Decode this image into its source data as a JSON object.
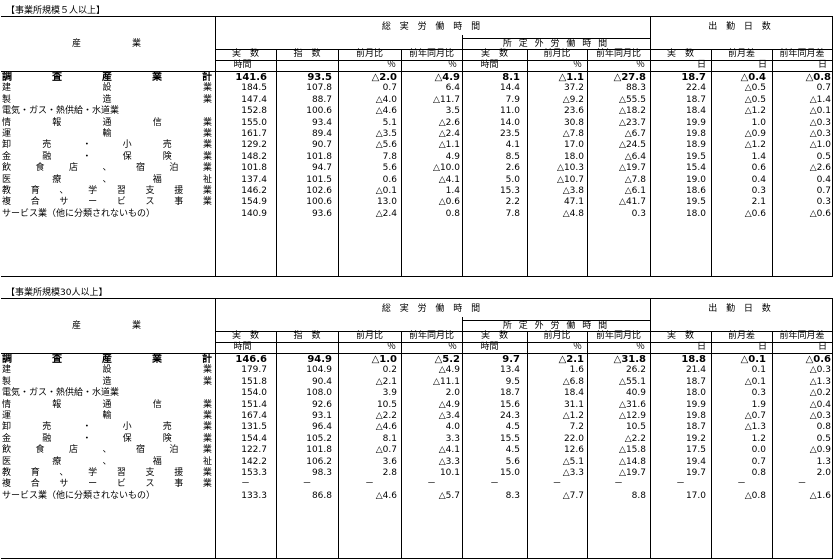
{
  "sections": [
    {
      "title": "【事業所規模５人以上】",
      "rows": [
        {
          "name": [
            "調",
            "査",
            "産",
            "業",
            "計"
          ],
          "v": [
            "141.6",
            "93.5",
            "△2.0",
            "△4.9",
            "8.1",
            "△1.1",
            "△27.8",
            "18.7",
            "△0.4",
            "△0.8"
          ],
          "bold": true
        },
        {
          "name": [
            "建",
            "設",
            "業"
          ],
          "v": [
            "184.5",
            "107.8",
            "0.7",
            "6.4",
            "14.4",
            "37.2",
            "88.3",
            "22.4",
            "△0.5",
            "0.7"
          ]
        },
        {
          "name": [
            "製",
            "造",
            "業"
          ],
          "v": [
            "147.4",
            "88.7",
            "△4.0",
            "△11.7",
            "7.9",
            "△9.2",
            "△55.5",
            "18.7",
            "△0.5",
            "△1.4"
          ]
        },
        {
          "name": [
            "電気・ガス・熱供給・水道業"
          ],
          "v": [
            "152.8",
            "100.6",
            "△4.6",
            "3.5",
            "11.0",
            "23.6",
            "△18.2",
            "18.4",
            "△1.2",
            "△0.1"
          ]
        },
        {
          "name": [
            "情",
            "報",
            "通",
            "信",
            "業"
          ],
          "v": [
            "155.0",
            "93.4",
            "5.1",
            "△2.6",
            "14.0",
            "30.8",
            "△23.7",
            "19.9",
            "1.0",
            "△0.3"
          ]
        },
        {
          "name": [
            "運",
            "輸",
            "業"
          ],
          "v": [
            "161.7",
            "89.4",
            "△3.5",
            "△2.4",
            "23.5",
            "△7.8",
            "△6.7",
            "19.8",
            "△0.9",
            "△0.3"
          ]
        },
        {
          "name": [
            "卸",
            "売",
            "・",
            "小",
            "売",
            "業"
          ],
          "v": [
            "129.2",
            "90.7",
            "△5.6",
            "△1.1",
            "4.1",
            "17.0",
            "△24.5",
            "18.9",
            "△1.2",
            "△1.0"
          ]
        },
        {
          "name": [
            "金",
            "融",
            "・",
            "保",
            "険",
            "業"
          ],
          "v": [
            "148.2",
            "101.8",
            "7.8",
            "4.9",
            "8.5",
            "18.0",
            "△6.4",
            "19.5",
            "1.4",
            "0.5"
          ]
        },
        {
          "name": [
            "飲",
            "食",
            "店",
            "、",
            "宿",
            "泊",
            "業"
          ],
          "v": [
            "101.8",
            "94.7",
            "5.6",
            "△10.0",
            "2.6",
            "△10.3",
            "△19.7",
            "15.4",
            "0.6",
            "△2.6"
          ]
        },
        {
          "name": [
            "医",
            "療",
            "、",
            "福",
            "祉"
          ],
          "v": [
            "137.4",
            "101.5",
            "0.6",
            "△4.1",
            "5.0",
            "△10.7",
            "△7.8",
            "19.0",
            "0.4",
            "0.4"
          ]
        },
        {
          "name": [
            "教",
            "育",
            "、",
            "学",
            "習",
            "支",
            "援",
            "業"
          ],
          "v": [
            "146.2",
            "102.6",
            "△0.1",
            "1.4",
            "15.3",
            "△3.8",
            "△6.1",
            "18.6",
            "0.3",
            "0.7"
          ]
        },
        {
          "name": [
            "複",
            "合",
            "サ",
            "ー",
            "ビ",
            "ス",
            "事",
            "業"
          ],
          "v": [
            "154.9",
            "100.6",
            "13.0",
            "△0.6",
            "2.2",
            "47.1",
            "△41.7",
            "19.5",
            "2.1",
            "0.3"
          ]
        },
        {
          "name": [
            "サービス業（他に分類されないもの）"
          ],
          "v": [
            "140.9",
            "93.6",
            "△2.4",
            "0.8",
            "7.8",
            "△4.8",
            "0.3",
            "18.0",
            "△0.6",
            "△0.6"
          ]
        }
      ]
    },
    {
      "title": "【事業所規模30人以上】",
      "rows": [
        {
          "name": [
            "調",
            "査",
            "産",
            "業",
            "計"
          ],
          "v": [
            "146.6",
            "94.9",
            "△1.0",
            "△5.2",
            "9.7",
            "△2.1",
            "△31.8",
            "18.8",
            "△0.1",
            "△0.6"
          ],
          "bold": true
        },
        {
          "name": [
            "建",
            "設",
            "業"
          ],
          "v": [
            "179.7",
            "104.9",
            "0.2",
            "△4.9",
            "13.4",
            "1.6",
            "26.2",
            "21.4",
            "0.1",
            "△0.3"
          ]
        },
        {
          "name": [
            "製",
            "造",
            "業"
          ],
          "v": [
            "151.8",
            "90.4",
            "△2.1",
            "△11.1",
            "9.5",
            "△6.8",
            "△55.1",
            "18.7",
            "△0.1",
            "△1.3"
          ]
        },
        {
          "name": [
            "電気・ガス・熱供給・水道業"
          ],
          "v": [
            "154.0",
            "108.0",
            "3.9",
            "2.0",
            "18.7",
            "18.4",
            "40.9",
            "18.0",
            "0.3",
            "△0.2"
          ]
        },
        {
          "name": [
            "情",
            "報",
            "通",
            "信",
            "業"
          ],
          "v": [
            "151.4",
            "92.6",
            "10.5",
            "△4.9",
            "15.6",
            "31.1",
            "△31.6",
            "19.9",
            "1.9",
            "△0.4"
          ]
        },
        {
          "name": [
            "運",
            "輸",
            "業"
          ],
          "v": [
            "167.4",
            "93.1",
            "△2.2",
            "△3.4",
            "24.3",
            "△1.2",
            "△12.9",
            "19.8",
            "△0.7",
            "△0.3"
          ]
        },
        {
          "name": [
            "卸",
            "売",
            "・",
            "小",
            "売",
            "業"
          ],
          "v": [
            "131.5",
            "96.4",
            "△4.6",
            "4.0",
            "4.5",
            "7.2",
            "10.5",
            "18.7",
            "△1.3",
            "0.8"
          ]
        },
        {
          "name": [
            "金",
            "融",
            "・",
            "保",
            "険",
            "業"
          ],
          "v": [
            "154.4",
            "105.2",
            "8.1",
            "3.3",
            "15.5",
            "22.0",
            "△2.2",
            "19.2",
            "1.2",
            "0.5"
          ]
        },
        {
          "name": [
            "飲",
            "食",
            "店",
            "、",
            "宿",
            "泊",
            "業"
          ],
          "v": [
            "122.7",
            "101.8",
            "△0.7",
            "△4.1",
            "4.5",
            "12.6",
            "△15.8",
            "17.5",
            "0.0",
            "△0.9"
          ]
        },
        {
          "name": [
            "医",
            "療",
            "、",
            "福",
            "祉"
          ],
          "v": [
            "142.2",
            "106.2",
            "3.6",
            "△3.3",
            "5.6",
            "△5.1",
            "△14.8",
            "19.4",
            "0.7",
            "1.3"
          ]
        },
        {
          "name": [
            "教",
            "育",
            "、",
            "学",
            "習",
            "支",
            "援",
            "業"
          ],
          "v": [
            "153.3",
            "98.3",
            "2.8",
            "10.1",
            "15.0",
            "△3.3",
            "△19.7",
            "19.7",
            "0.8",
            "2.0"
          ]
        },
        {
          "name": [
            "複",
            "合",
            "サ",
            "ー",
            "ビ",
            "ス",
            "事",
            "業"
          ],
          "v": [
            "－",
            "－",
            "－",
            "－",
            "－",
            "－",
            "－",
            "－",
            "－",
            "－"
          ]
        },
        {
          "name": [
            "サービス業（他に分類されないもの）"
          ],
          "v": [
            "133.3",
            "86.8",
            "△4.6",
            "△5.7",
            "8.3",
            "△7.7",
            "8.8",
            "17.0",
            "△0.8",
            "△1.6"
          ]
        }
      ]
    }
  ],
  "header": {
    "industry": "産　　　　業",
    "total_hours": "総 実 労 働 時 間",
    "days": "出 勤 日 数",
    "overtime": "所 定 外 労 働 時 間",
    "cols": [
      "実　数",
      "指　数",
      "前月比",
      "前年同月比",
      "実　数",
      "前月比",
      "前年同月比",
      "実　数",
      "前月差",
      "前年同月差"
    ],
    "units": [
      "時間",
      "",
      "％",
      "％",
      "時間",
      "％",
      "％",
      "日",
      "日",
      "日"
    ]
  }
}
